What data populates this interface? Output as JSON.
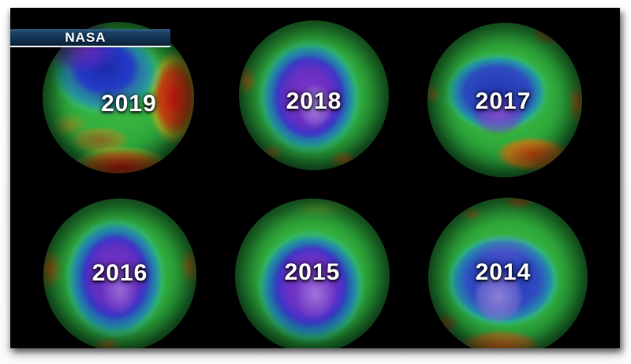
{
  "banner": {
    "label": "NASA"
  },
  "globes": [
    {
      "year": "2019",
      "grid_position": "top-left"
    },
    {
      "year": "2018",
      "grid_position": "top-center"
    },
    {
      "year": "2017",
      "grid_position": "top-right"
    },
    {
      "year": "2016",
      "grid_position": "bottom-left"
    },
    {
      "year": "2015",
      "grid_position": "bottom-center"
    },
    {
      "year": "2014",
      "grid_position": "bottom-right"
    }
  ],
  "colors": {
    "page_background": "#fdfdfd",
    "canvas_background": "#000000",
    "banner_blue_top": "#34648c",
    "banner_blue_bottom": "#0d2238",
    "banner_underline": "#eef0f2",
    "year_text": "#ffffff",
    "ozone_hole_purple": "#7c34c8",
    "ozone_low_blue": "#2c3ecc",
    "ozone_teal": "#2ebca2",
    "ozone_mid_green": "#30ac3c",
    "ozone_high_orange": "#d07014",
    "ozone_very_high_red": "#cd0e0e"
  }
}
